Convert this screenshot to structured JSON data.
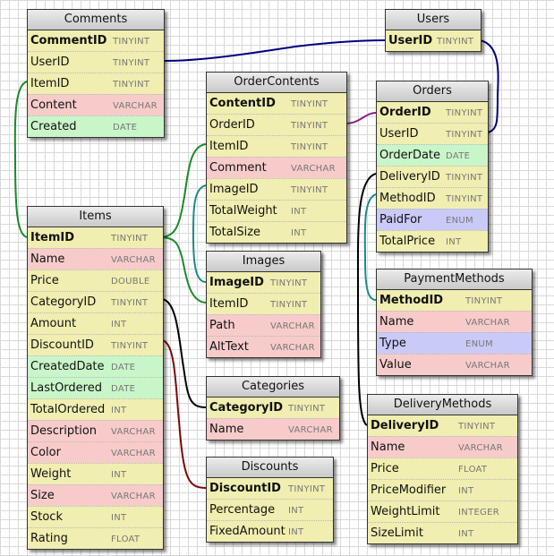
{
  "colors": {
    "yellow": "#f0eeb0",
    "pink": "#f8cbcb",
    "green": "#c9f6c9",
    "blue": "#cacaf8",
    "header": "#d4d4d4",
    "link_navy": "#000080",
    "link_green": "#1a8a2a",
    "link_teal": "#1f8a8a",
    "link_purple": "#8a1f8a",
    "link_black": "#000000",
    "link_darkred": "#7a0a0a"
  },
  "tables": {
    "comments": {
      "title": "Comments",
      "fields": [
        {
          "name": "CommentID",
          "type": "TINYINT",
          "pk": true,
          "color": "yellow"
        },
        {
          "name": "UserID",
          "type": "TINYINT",
          "pk": false,
          "color": "yellow"
        },
        {
          "name": "ItemID",
          "type": "TINYINT",
          "pk": false,
          "color": "yellow"
        },
        {
          "name": "Content",
          "type": "VARCHAR",
          "pk": false,
          "color": "pink"
        },
        {
          "name": "Created",
          "type": "DATE",
          "pk": false,
          "color": "green"
        }
      ]
    },
    "users": {
      "title": "Users",
      "fields": [
        {
          "name": "UserID",
          "type": "TINYINT",
          "pk": true,
          "color": "yellow"
        }
      ]
    },
    "ordercontents": {
      "title": "OrderContents",
      "fields": [
        {
          "name": "ContentID",
          "type": "TINYINT",
          "pk": true,
          "color": "yellow"
        },
        {
          "name": "OrderID",
          "type": "TINYINT",
          "pk": false,
          "color": "yellow"
        },
        {
          "name": "ItemID",
          "type": "TINYINT",
          "pk": false,
          "color": "yellow"
        },
        {
          "name": "Comment",
          "type": "VARCHAR",
          "pk": false,
          "color": "pink"
        },
        {
          "name": "ImageID",
          "type": "TINYINT",
          "pk": false,
          "color": "yellow"
        },
        {
          "name": "TotalWeight",
          "type": "INT",
          "pk": false,
          "color": "yellow"
        },
        {
          "name": "TotalSize",
          "type": "INT",
          "pk": false,
          "color": "yellow"
        }
      ]
    },
    "orders": {
      "title": "Orders",
      "fields": [
        {
          "name": "OrderID",
          "type": "TINYINT",
          "pk": true,
          "color": "yellow"
        },
        {
          "name": "UserID",
          "type": "TINYINT",
          "pk": false,
          "color": "yellow"
        },
        {
          "name": "OrderDate",
          "type": "DATE",
          "pk": false,
          "color": "green"
        },
        {
          "name": "DeliveryID",
          "type": "TINYINT",
          "pk": false,
          "color": "yellow"
        },
        {
          "name": "MethodID",
          "type": "TINYINT",
          "pk": false,
          "color": "yellow"
        },
        {
          "name": "PaidFor",
          "type": "ENUM",
          "pk": false,
          "color": "blue"
        },
        {
          "name": "TotalPrice",
          "type": "INT",
          "pk": false,
          "color": "yellow"
        }
      ]
    },
    "items": {
      "title": "Items",
      "fields": [
        {
          "name": "ItemID",
          "type": "TINYINT",
          "pk": true,
          "color": "yellow"
        },
        {
          "name": "Name",
          "type": "VARCHAR",
          "pk": false,
          "color": "pink"
        },
        {
          "name": "Price",
          "type": "DOUBLE",
          "pk": false,
          "color": "yellow"
        },
        {
          "name": "CategoryID",
          "type": "TINYINT",
          "pk": false,
          "color": "yellow"
        },
        {
          "name": "Amount",
          "type": "INT",
          "pk": false,
          "color": "yellow"
        },
        {
          "name": "DiscountID",
          "type": "TINYINT",
          "pk": false,
          "color": "yellow"
        },
        {
          "name": "CreatedDate",
          "type": "DATE",
          "pk": false,
          "color": "green"
        },
        {
          "name": "LastOrdered",
          "type": "DATE",
          "pk": false,
          "color": "green"
        },
        {
          "name": "TotalOrdered",
          "type": "INT",
          "pk": false,
          "color": "yellow"
        },
        {
          "name": "Description",
          "type": "VARCHAR",
          "pk": false,
          "color": "pink"
        },
        {
          "name": "Color",
          "type": "VARCHAR",
          "pk": false,
          "color": "pink"
        },
        {
          "name": "Weight",
          "type": "INT",
          "pk": false,
          "color": "yellow"
        },
        {
          "name": "Size",
          "type": "VARCHAR",
          "pk": false,
          "color": "pink"
        },
        {
          "name": "Stock",
          "type": "INT",
          "pk": false,
          "color": "yellow"
        },
        {
          "name": "Rating",
          "type": "FLOAT",
          "pk": false,
          "color": "yellow"
        }
      ]
    },
    "images": {
      "title": "Images",
      "fields": [
        {
          "name": "ImageID",
          "type": "TINYINT",
          "pk": true,
          "color": "yellow"
        },
        {
          "name": "ItemID",
          "type": "TINYINT",
          "pk": false,
          "color": "yellow"
        },
        {
          "name": "Path",
          "type": "VARCHAR",
          "pk": false,
          "color": "pink"
        },
        {
          "name": "AltText",
          "type": "VARCHAR",
          "pk": false,
          "color": "pink"
        }
      ]
    },
    "paymentmethods": {
      "title": "PaymentMethods",
      "fields": [
        {
          "name": "MethodID",
          "type": "TINYINT",
          "pk": true,
          "color": "yellow"
        },
        {
          "name": "Name",
          "type": "VARCHAR",
          "pk": false,
          "color": "pink"
        },
        {
          "name": "Type",
          "type": "ENUM",
          "pk": false,
          "color": "blue"
        },
        {
          "name": "Value",
          "type": "VARCHAR",
          "pk": false,
          "color": "pink"
        }
      ]
    },
    "categories": {
      "title": "Categories",
      "fields": [
        {
          "name": "CategoryID",
          "type": "TINYINT",
          "pk": true,
          "color": "yellow"
        },
        {
          "name": "Name",
          "type": "VARCHAR",
          "pk": false,
          "color": "pink"
        }
      ]
    },
    "discounts": {
      "title": "Discounts",
      "fields": [
        {
          "name": "DiscountID",
          "type": "TINYINT",
          "pk": true,
          "color": "yellow"
        },
        {
          "name": "Percentage",
          "type": "INT",
          "pk": false,
          "color": "yellow"
        },
        {
          "name": "FixedAmount",
          "type": "INT",
          "pk": false,
          "color": "yellow"
        }
      ]
    },
    "deliverymethods": {
      "title": "DeliveryMethods",
      "fields": [
        {
          "name": "DeliveryID",
          "type": "TINYINT",
          "pk": true,
          "color": "yellow"
        },
        {
          "name": "Name",
          "type": "VARCHAR",
          "pk": false,
          "color": "pink"
        },
        {
          "name": "Price",
          "type": "FLOAT",
          "pk": false,
          "color": "yellow"
        },
        {
          "name": "PriceModifier",
          "type": "INT",
          "pk": false,
          "color": "yellow"
        },
        {
          "name": "WeightLimit",
          "type": "INTEGER",
          "pk": false,
          "color": "yellow"
        },
        {
          "name": "SizeLimit",
          "type": "INT",
          "pk": false,
          "color": "yellow"
        }
      ]
    }
  }
}
